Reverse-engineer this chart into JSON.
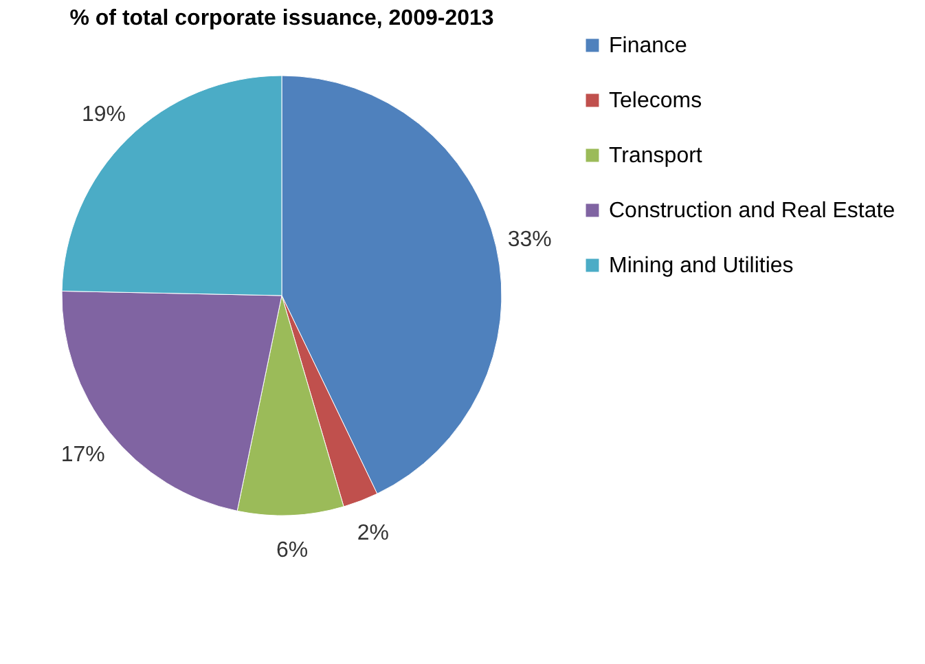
{
  "chart_data": {
    "type": "pie",
    "title": "% of total corporate issuance, 2009-2013",
    "categories": [
      "Finance",
      "Telecoms",
      "Transport",
      "Construction and Real Estate",
      "Mining and Utilities"
    ],
    "values": [
      33,
      2,
      6,
      17,
      19
    ],
    "value_labels": [
      "33%",
      "2%",
      "6%",
      "17%",
      "19%"
    ],
    "colors": [
      "#4f81bd",
      "#c0504d",
      "#9bbb59",
      "#8064a2",
      "#4bacc6"
    ],
    "legend": "right"
  }
}
